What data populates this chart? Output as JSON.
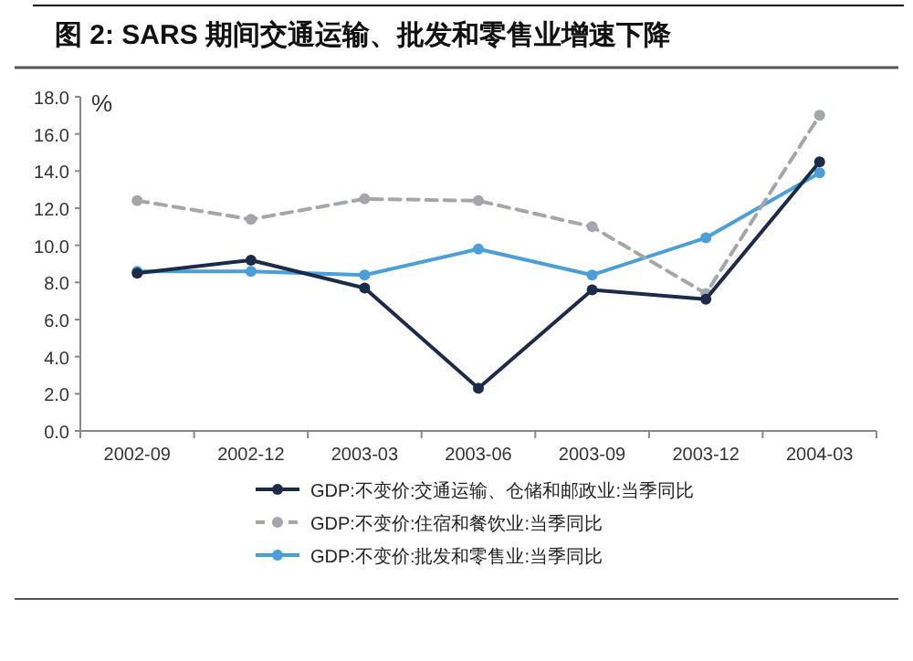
{
  "chart_data": {
    "type": "line",
    "title": "图 2:  SARS 期间交通运输、批发和零售业增速下降",
    "ylabel": "%",
    "categories": [
      "2002-09",
      "2002-12",
      "2003-03",
      "2003-06",
      "2003-09",
      "2003-12",
      "2004-03"
    ],
    "series": [
      {
        "name": "GDP:不变价:交通运输、仓储和邮政业:当季同比",
        "color": "#1c2b4a",
        "line_style": "solid",
        "values": [
          8.5,
          9.2,
          7.7,
          2.3,
          7.6,
          7.1,
          14.5
        ]
      },
      {
        "name": "GDP:不变价:住宿和餐饮业:当季同比",
        "color": "#a3a6ab",
        "line_style": "dashed",
        "values": [
          12.4,
          11.4,
          12.5,
          12.4,
          11.0,
          7.4,
          17.0
        ]
      },
      {
        "name": "GDP:不变价:批发和零售业:当季同比",
        "color": "#4a9fd8",
        "line_style": "solid",
        "values": [
          8.6,
          8.6,
          8.4,
          9.8,
          8.4,
          10.4,
          13.9
        ]
      }
    ],
    "ylim": [
      0,
      18
    ],
    "yticks": [
      {
        "value": 0,
        "label": "0.0"
      },
      {
        "value": 2,
        "label": "2.0"
      },
      {
        "value": 4,
        "label": "4.0"
      },
      {
        "value": 6,
        "label": "6.0"
      },
      {
        "value": 8,
        "label": "8.0"
      },
      {
        "value": 10,
        "label": "10.0"
      },
      {
        "value": 12,
        "label": "12.0"
      },
      {
        "value": 14,
        "label": "14.0"
      },
      {
        "value": 16,
        "label": "16.0"
      },
      {
        "value": 18,
        "label": "18.0"
      }
    ],
    "marker": "circle",
    "legend": "bottom"
  }
}
